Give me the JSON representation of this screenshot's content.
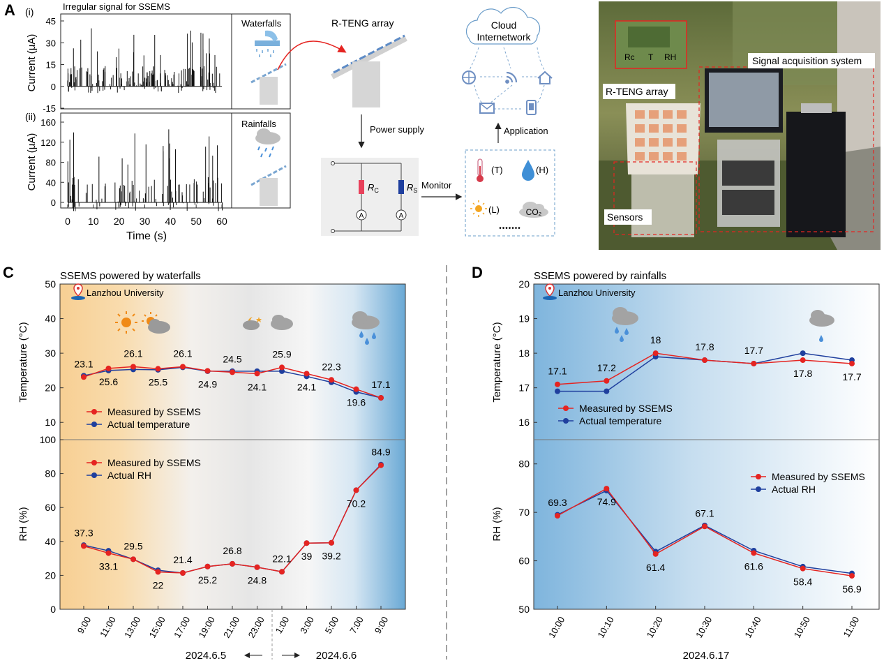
{
  "panels": {
    "A": "A",
    "B": "B",
    "C": "C",
    "D": "D",
    "Ai": "(i)",
    "Aii": "(ii)"
  },
  "panelA": {
    "title": "Irregular signal for SSEMS",
    "ylabel": "Current (μA)",
    "xlabel": "Time (s)",
    "y_ticks_i": [
      "45",
      "30",
      "15",
      "0",
      "-15"
    ],
    "y_ticks_ii": [
      "160",
      "120",
      "80",
      "40",
      "0"
    ],
    "x_ticks": [
      "0",
      "10",
      "20",
      "30",
      "40",
      "50",
      "60"
    ],
    "waterfalls": "Waterfalls",
    "rainfalls": "Rainfalls",
    "rteng": "R-TENG array",
    "power_supply": "Power supply",
    "rc": "R",
    "rc_sub": "C",
    "rs": "R",
    "rs_sub": "S",
    "ammeter": "A",
    "monitor": "Monitor",
    "cloud_line1": "Cloud",
    "cloud_line2": "Internetwork",
    "application": "Application",
    "sensor_t": "(T)",
    "sensor_h": "(H)",
    "sensor_l": "(L)",
    "co2": "CO₂",
    "dots": "•••••••"
  },
  "panelB": {
    "rc": "Rc",
    "t": "T",
    "rh": "RH",
    "signal": "Signal acquisition system",
    "array": "R-TENG array",
    "sensors": "Sensors"
  },
  "chart_data": [
    {
      "id": "C-temperature",
      "type": "line",
      "title": "SSEMS powered by waterfalls",
      "location": "Lanzhou University",
      "ylabel": "Temperature (°C)",
      "ylim": [
        5,
        50
      ],
      "yticks": [
        10,
        20,
        30,
        40,
        50
      ],
      "categories": [
        "9:00",
        "11:00",
        "13:00",
        "15:00",
        "17:00",
        "19:00",
        "21:00",
        "23:00",
        "1:00",
        "3:00",
        "5:00",
        "7:00",
        "9:00"
      ],
      "series": [
        {
          "name": "Measured by SSEMS",
          "color": "#e52421",
          "values": [
            23.1,
            25.6,
            26.1,
            25.5,
            26.1,
            24.9,
            24.5,
            24.1,
            25.9,
            24.1,
            22.3,
            19.6,
            17.1
          ]
        },
        {
          "name": "Actual temperature",
          "color": "#1f3f9e",
          "values": [
            23.5,
            25.0,
            25.3,
            25.2,
            25.9,
            24.8,
            24.8,
            24.8,
            24.8,
            23.3,
            21.6,
            18.8,
            17.1
          ]
        }
      ],
      "labels": [
        {
          "i": 0,
          "text": "23.1",
          "pos": "above"
        },
        {
          "i": 1,
          "text": "25.6",
          "pos": "below"
        },
        {
          "i": 2,
          "text": "26.1",
          "pos": "above"
        },
        {
          "i": 3,
          "text": "25.5",
          "pos": "below"
        },
        {
          "i": 4,
          "text": "26.1",
          "pos": "above"
        },
        {
          "i": 5,
          "text": "24.9",
          "pos": "below"
        },
        {
          "i": 6,
          "text": "24.5",
          "pos": "above"
        },
        {
          "i": 7,
          "text": "24.1",
          "pos": "below"
        },
        {
          "i": 8,
          "text": "25.9",
          "pos": "above"
        },
        {
          "i": 9,
          "text": "24.1",
          "pos": "below"
        },
        {
          "i": 10,
          "text": "22.3",
          "pos": "above"
        },
        {
          "i": 11,
          "text": "19.6",
          "pos": "below"
        },
        {
          "i": 12,
          "text": "17.1",
          "pos": "above"
        }
      ]
    },
    {
      "id": "C-rh",
      "type": "line",
      "ylabel": "RH (%)",
      "ylim": [
        0,
        100
      ],
      "yticks": [
        0,
        20,
        40,
        60,
        80,
        100
      ],
      "categories": [
        "9:00",
        "11:00",
        "13:00",
        "15:00",
        "17:00",
        "19:00",
        "21:00",
        "23:00",
        "1:00",
        "3:00",
        "5:00",
        "7:00",
        "9:00"
      ],
      "series": [
        {
          "name": "Measured by SSEMS",
          "color": "#e52421",
          "values": [
            37.3,
            33.1,
            29.5,
            22,
            21.4,
            25.2,
            26.8,
            24.8,
            22.1,
            39,
            39.2,
            70.2,
            84.9
          ]
        },
        {
          "name": "Actual RH",
          "color": "#1f3f9e",
          "values": [
            37.8,
            34.5,
            29.5,
            23,
            21.4,
            25.2,
            26.8,
            24.8,
            22.1,
            39,
            39.2,
            70.2,
            85.3
          ]
        }
      ],
      "labels": [
        {
          "i": 0,
          "text": "37.3",
          "pos": "above"
        },
        {
          "i": 1,
          "text": "33.1",
          "pos": "below"
        },
        {
          "i": 2,
          "text": "29.5",
          "pos": "above"
        },
        {
          "i": 3,
          "text": "22",
          "pos": "below"
        },
        {
          "i": 4,
          "text": "21.4",
          "pos": "above"
        },
        {
          "i": 5,
          "text": "25.2",
          "pos": "below"
        },
        {
          "i": 6,
          "text": "26.8",
          "pos": "above"
        },
        {
          "i": 7,
          "text": "24.8",
          "pos": "below"
        },
        {
          "i": 8,
          "text": "22.1",
          "pos": "above"
        },
        {
          "i": 9,
          "text": "39",
          "pos": "below"
        },
        {
          "i": 10,
          "text": "39.2",
          "pos": "below"
        },
        {
          "i": 11,
          "text": "70.2",
          "pos": "below"
        },
        {
          "i": 12,
          "text": "84.9",
          "pos": "above"
        }
      ],
      "date_left": "2024.6.5",
      "date_right": "2024.6.6"
    },
    {
      "id": "D-temperature",
      "type": "line",
      "title": "SSEMS powered by rainfalls",
      "location": "Lanzhou University",
      "ylabel": "Temperature (°C)",
      "ylim": [
        15.5,
        20
      ],
      "yticks": [
        16,
        17,
        18,
        19,
        20
      ],
      "categories": [
        "10:00",
        "10:10",
        "10:20",
        "10:30",
        "10:40",
        "10:50",
        "11:00"
      ],
      "series": [
        {
          "name": "Measured by SSEMS",
          "color": "#e52421",
          "values": [
            17.1,
            17.2,
            18,
            17.8,
            17.7,
            17.8,
            17.7
          ]
        },
        {
          "name": "Actual temperature",
          "color": "#1f3f9e",
          "values": [
            16.9,
            16.9,
            17.9,
            17.8,
            17.7,
            18.0,
            17.8
          ]
        }
      ],
      "labels": [
        {
          "i": 0,
          "text": "17.1",
          "pos": "above"
        },
        {
          "i": 1,
          "text": "17.2",
          "pos": "above"
        },
        {
          "i": 2,
          "text": "18",
          "pos": "above"
        },
        {
          "i": 3,
          "text": "17.8",
          "pos": "above"
        },
        {
          "i": 4,
          "text": "17.7",
          "pos": "above"
        },
        {
          "i": 5,
          "text": "17.8",
          "pos": "below"
        },
        {
          "i": 6,
          "text": "17.7",
          "pos": "below"
        }
      ]
    },
    {
      "id": "D-rh",
      "type": "line",
      "ylabel": "RH (%)",
      "ylim": [
        50,
        85
      ],
      "yticks": [
        50,
        60,
        70,
        80
      ],
      "categories": [
        "10:00",
        "10:10",
        "10:20",
        "10:30",
        "10:40",
        "10:50",
        "11:00"
      ],
      "series": [
        {
          "name": "Measured by SSEMS",
          "color": "#e52421",
          "values": [
            69.3,
            74.9,
            61.4,
            67.1,
            61.6,
            58.4,
            56.9
          ]
        },
        {
          "name": "Actual RH",
          "color": "#1f3f9e",
          "values": [
            69.5,
            74.5,
            61.9,
            67.3,
            62.1,
            58.8,
            57.4
          ]
        }
      ],
      "labels": [
        {
          "i": 0,
          "text": "69.3",
          "pos": "above"
        },
        {
          "i": 1,
          "text": "74.9",
          "pos": "below"
        },
        {
          "i": 2,
          "text": "61.4",
          "pos": "below"
        },
        {
          "i": 3,
          "text": "67.1",
          "pos": "above"
        },
        {
          "i": 4,
          "text": "61.6",
          "pos": "below"
        },
        {
          "i": 5,
          "text": "58.4",
          "pos": "below"
        },
        {
          "i": 6,
          "text": "56.9",
          "pos": "below"
        }
      ],
      "date": "2024.6.17"
    }
  ]
}
